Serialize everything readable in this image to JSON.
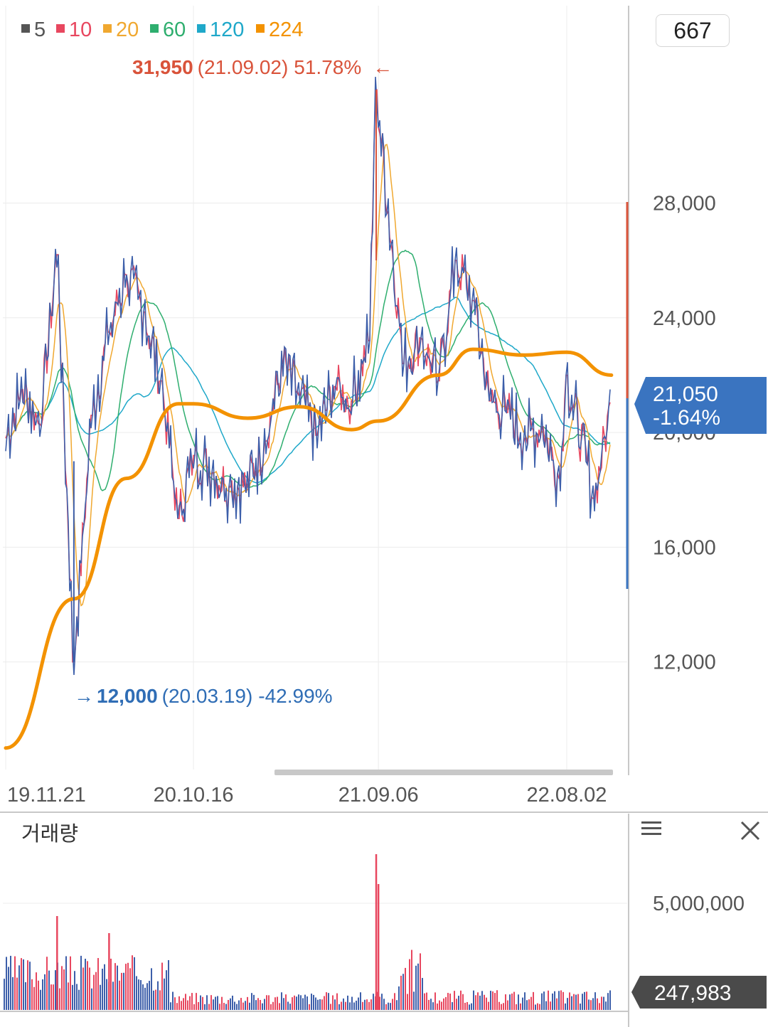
{
  "legend": [
    {
      "label": "5",
      "color": "#555555"
    },
    {
      "label": "10",
      "color": "#e8475f"
    },
    {
      "label": "20",
      "color": "#f0a830"
    },
    {
      "label": "60",
      "color": "#2eae6e"
    },
    {
      "label": "120",
      "color": "#1fa8c9"
    },
    {
      "label": "224",
      "color": "#f39200"
    }
  ],
  "counter": "667",
  "high_annotation": {
    "price": "31,950",
    "date": "(21.09.02)",
    "pct": "51.78%",
    "arrow": "←",
    "color": "#d9533a"
  },
  "low_annotation": {
    "arrow": "→",
    "price": "12,000",
    "date": "(20.03.19)",
    "pct": "-42.99%",
    "color": "#2f6db5"
  },
  "current_price": {
    "price": "21,050",
    "change": "-1.64%",
    "color": "#3a74c0"
  },
  "volume_panel": {
    "title": "거래량",
    "current": "247,983",
    "tick": "5,000,000",
    "menu_icon": "hamburger-menu-icon",
    "close_icon": "close-icon"
  },
  "chart_data": [
    {
      "type": "line",
      "title": "",
      "x_ticks": [
        "19.11.21",
        "20.10.16",
        "21.09.06",
        "22.08.02"
      ],
      "y_ticks": [
        12000,
        16000,
        20000,
        24000,
        28000
      ],
      "y_tick_labels": [
        "12,000",
        "16,000",
        "20,000",
        "24,000",
        "28,000"
      ],
      "ylim": [
        8200,
        32500
      ],
      "grid": true,
      "price_series": {
        "name": "5",
        "x": [
          "19.11.21",
          "19.12.20",
          "20.01.20",
          "20.02.20",
          "20.03.19",
          "20.04.20",
          "20.05.20",
          "20.06.20",
          "20.07.20",
          "20.08.20",
          "20.09.20",
          "20.10.16",
          "20.11.20",
          "20.12.20",
          "21.01.20",
          "21.02.20",
          "21.03.20",
          "21.04.20",
          "21.05.20",
          "21.06.20",
          "21.07.20",
          "21.08.20",
          "21.09.02",
          "21.10.20",
          "21.11.20",
          "21.12.20",
          "22.01.20",
          "22.02.20",
          "22.03.20",
          "22.04.20",
          "22.05.20",
          "22.06.20",
          "22.07.20",
          "22.08.02",
          "22.09.20",
          "22.10.20"
        ],
        "values": [
          19800,
          21500,
          20300,
          26200,
          12000,
          20600,
          23500,
          25500,
          24200,
          21800,
          17000,
          19200,
          18600,
          18100,
          18200,
          19700,
          22400,
          21300,
          19900,
          21600,
          21100,
          23200,
          31950,
          22400,
          23300,
          21800,
          26000,
          24600,
          21100,
          20700,
          19800,
          20200,
          18400,
          22000,
          17700,
          21050
        ]
      },
      "ma_224": {
        "name": "224",
        "x": [
          "19.11.21",
          "20.03.19",
          "20.06.20",
          "20.09.20",
          "20.10.16",
          "21.01.20",
          "21.04.20",
          "21.07.20",
          "21.09.06",
          "21.12.20",
          "22.02.20",
          "22.05.20",
          "22.08.02",
          "22.10.20"
        ],
        "values": [
          9000,
          14200,
          18400,
          21000,
          21000,
          20500,
          20900,
          20100,
          20400,
          22000,
          22900,
          22700,
          22800,
          22000
        ]
      },
      "high": {
        "date": "21.09.02",
        "value": 31950
      },
      "low": {
        "date": "20.03.19",
        "value": 12000
      },
      "last": {
        "value": 21050
      }
    },
    {
      "type": "bar",
      "title": "거래량",
      "y_ticks": [
        5000000
      ],
      "y_tick_labels": [
        "5,000,000"
      ],
      "ylim": [
        0,
        9000000
      ],
      "spikes": [
        {
          "date": "20.02.20",
          "value": 4400000
        },
        {
          "date": "20.05.20",
          "value": 3600000
        },
        {
          "date": "21.09.02",
          "value": 7300000
        },
        {
          "date": "21.09.06",
          "value": 5900000
        }
      ],
      "last": {
        "value": 247983
      }
    }
  ]
}
